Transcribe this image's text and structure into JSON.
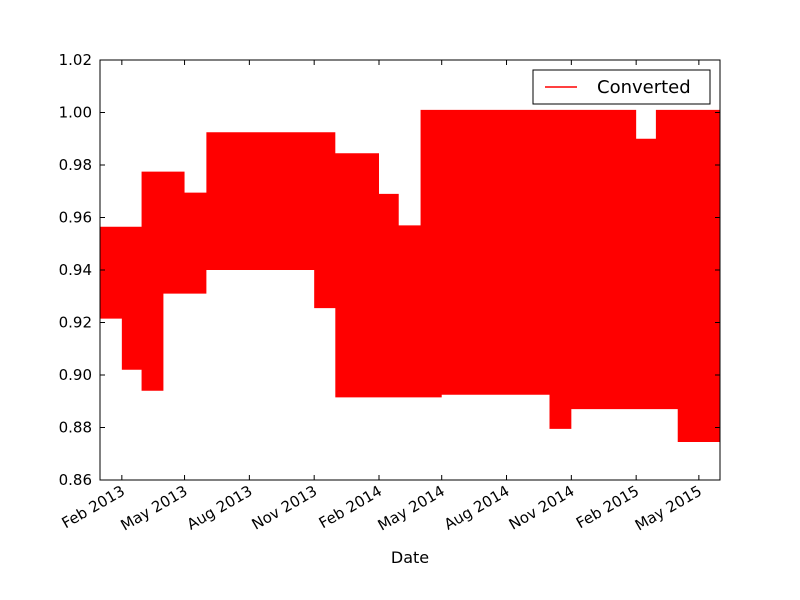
{
  "chart_data": {
    "type": "area",
    "xlabel": "Date",
    "ylabel": "",
    "ylim": [
      0.86,
      1.02
    ],
    "yticks": [
      0.86,
      0.88,
      0.9,
      0.92,
      0.94,
      0.96,
      0.98,
      1.0,
      1.02
    ],
    "ytick_labels": [
      "0.86",
      "0.88",
      "0.90",
      "0.92",
      "0.94",
      "0.96",
      "0.98",
      "1.00",
      "1.02"
    ],
    "xlim": [
      "2013-01-01",
      "2015-05-31"
    ],
    "xticks": [
      "2013-02-01",
      "2013-05-01",
      "2013-08-01",
      "2013-11-01",
      "2014-02-01",
      "2014-05-01",
      "2014-08-01",
      "2014-11-01",
      "2015-02-01",
      "2015-05-01"
    ],
    "xtick_labels": [
      "Feb 2013",
      "May 2013",
      "Aug 2013",
      "Nov 2013",
      "Feb 2014",
      "May 2014",
      "Aug 2014",
      "Nov 2014",
      "Feb 2015",
      "May 2015"
    ],
    "series": [
      {
        "name": "Converted",
        "color": "#ff0000",
        "step": "post",
        "x": [
          "2013-01-01",
          "2013-02-01",
          "2013-03-01",
          "2013-04-01",
          "2013-05-01",
          "2013-06-01",
          "2013-07-01",
          "2013-10-01",
          "2013-11-01",
          "2013-12-01",
          "2014-01-01",
          "2014-02-01",
          "2014-03-01",
          "2014-04-01",
          "2014-05-01",
          "2014-06-01",
          "2014-07-01",
          "2014-08-01",
          "2014-09-01",
          "2014-10-01",
          "2014-11-01",
          "2014-12-01",
          "2015-01-01",
          "2015-02-01",
          "2015-03-01",
          "2015-04-01",
          "2015-05-01",
          "2015-05-31"
        ],
        "low": [
          0.9215,
          0.902,
          0.894,
          0.931,
          0.931,
          0.94,
          0.94,
          0.94,
          0.9255,
          0.8915,
          0.8915,
          0.8915,
          0.8915,
          0.8915,
          0.8925,
          0.8925,
          0.8925,
          0.8925,
          0.8925,
          0.8795,
          0.887,
          0.887,
          0.887,
          0.887,
          0.887,
          0.8745,
          0.8745,
          0.8745
        ],
        "high": [
          0.9565,
          0.9565,
          0.9775,
          0.9775,
          0.9695,
          0.9925,
          0.9925,
          0.9925,
          0.9925,
          0.9845,
          0.9845,
          0.969,
          0.957,
          1.001,
          1.001,
          1.001,
          1.001,
          1.001,
          1.001,
          1.001,
          1.001,
          1.001,
          1.001,
          0.99,
          1.001,
          1.001,
          1.001,
          1.0105
        ]
      }
    ],
    "legend": {
      "position": "top-right",
      "entries": [
        "Converted"
      ]
    },
    "grid": false
  }
}
